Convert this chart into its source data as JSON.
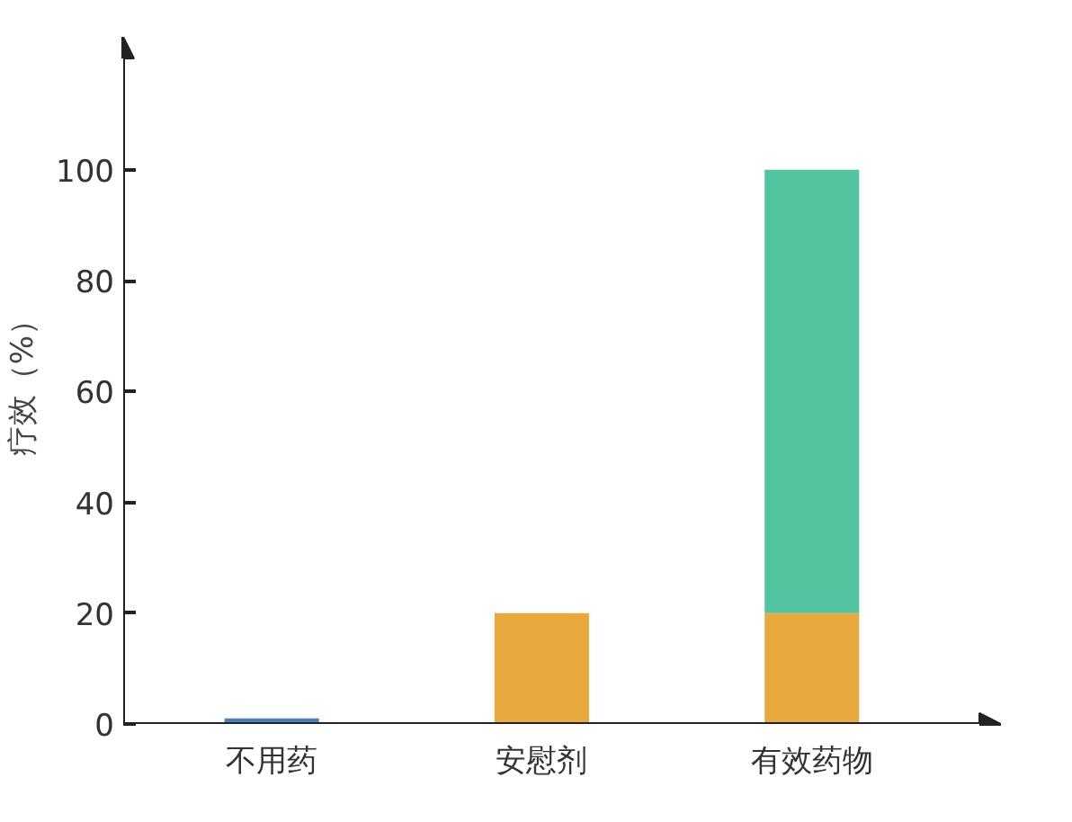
{
  "chart_data": {
    "type": "bar",
    "stacked": true,
    "ylabel": "疗效（%）",
    "categories": [
      "不用药",
      "安慰剂",
      "有效药物"
    ],
    "series": [
      {
        "color": "#4a7fc1",
        "values": [
          1,
          null,
          null
        ]
      },
      {
        "color": "#e8a93e",
        "values": [
          null,
          20,
          20
        ]
      },
      {
        "color": "#52c4a0",
        "values": [
          null,
          null,
          80
        ]
      }
    ],
    "ylim": [
      0,
      124
    ],
    "yticks": [
      0,
      20,
      40,
      60,
      80,
      100
    ],
    "grid": false
  }
}
